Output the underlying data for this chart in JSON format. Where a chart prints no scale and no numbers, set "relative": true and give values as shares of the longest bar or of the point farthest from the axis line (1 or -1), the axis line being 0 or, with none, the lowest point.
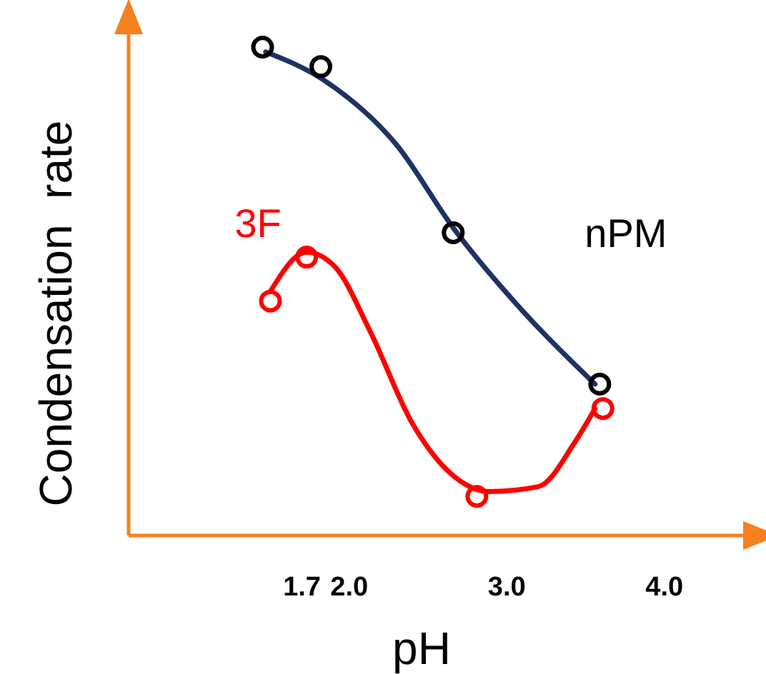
{
  "chart_data": {
    "type": "scatter",
    "xlabel": "pH",
    "ylabel": "Condensation  rate",
    "relative": true,
    "xlim": [
      0.6,
      4.5
    ],
    "xticks": [
      1.7,
      {
        "value": 2,
        "label": "2.0"
      },
      {
        "value": 3,
        "label": "3.0"
      },
      {
        "value": 4,
        "label": "4.0"
      }
    ],
    "line_style": "solid",
    "grid": false,
    "series": [
      {
        "type": "line",
        "marker": "none",
        "color": "#1f3264",
        "x": [
          1.47,
          1.85,
          2.3,
          2.66,
          3.1,
          3.56
        ],
        "values": [
          0.99,
          0.93,
          0.8,
          0.63,
          0.46,
          0.31
        ]
      },
      {
        "type": "line",
        "marker": "none",
        "color": "#ff0000",
        "x": [
          1.5,
          1.73,
          1.91,
          2.13,
          2.4,
          2.67,
          2.89,
          3.2,
          3.43,
          3.56
        ],
        "values": [
          0.5,
          0.58,
          0.55,
          0.42,
          0.23,
          0.12,
          0.09,
          0.1,
          0.19,
          0.26
        ]
      },
      {
        "name": "nPM",
        "marker": "circle",
        "color": "#000000",
        "x": [
          1.45,
          1.82,
          2.66,
          3.59
        ],
        "values": [
          1,
          0.96,
          0.62,
          0.31
        ]
      },
      {
        "name": "3F",
        "marker": "circle",
        "color": "#ff0000",
        "x": [
          1.5,
          1.73,
          2.81,
          3.61
        ],
        "values": [
          0.48,
          0.57,
          0.08,
          0.26
        ]
      }
    ]
  }
}
